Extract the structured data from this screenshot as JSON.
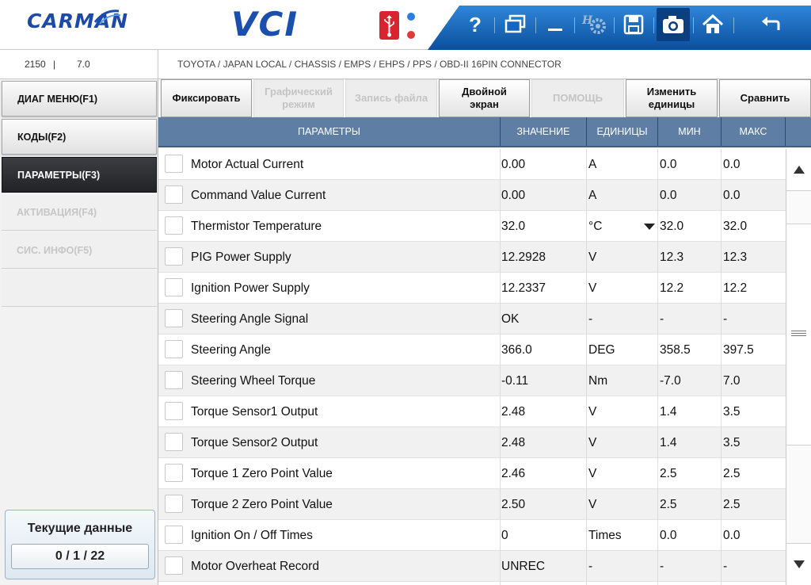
{
  "header": {
    "logo_text": "CARMAN",
    "app_title": "VCI",
    "toolbar_icons": [
      "help-icon",
      "window-icon",
      "minimize-icon",
      "settings-icon",
      "save-icon",
      "camera-icon",
      "home-icon",
      "back-icon"
    ],
    "help_label": "?",
    "accent_color": "#1a4fae",
    "toolbar_color": "#1566c0"
  },
  "info": {
    "vin": "2150",
    "separator": "|",
    "version": "7.0",
    "breadcrumb": "TOYOTA / JAPAN LOCAL / CHASSIS / EMPS / EHPS / PPS / OBD-II 16PIN CONNECTOR"
  },
  "nav": {
    "items": [
      {
        "label": "ДИАГ МЕНЮ(F1)",
        "state": "enabled"
      },
      {
        "label": "КОДЫ(F2)",
        "state": "enabled"
      },
      {
        "label": "ПАРАМЕТРЫ(F3)",
        "state": "active"
      },
      {
        "label": "АКТИВАЦИЯ(F4)",
        "state": "disabled"
      },
      {
        "label": "СИС. ИНФО(F5)",
        "state": "disabled"
      }
    ]
  },
  "counter": {
    "title": "Текущие данные",
    "value": "0 / 1 / 22"
  },
  "func_buttons": [
    {
      "label": "Фиксировать",
      "enabled": true
    },
    {
      "label": "Графический режим",
      "enabled": false
    },
    {
      "label": "Запись файла",
      "enabled": false
    },
    {
      "label": "Двойной экран",
      "enabled": true
    },
    {
      "label": "ПОМОЩЬ",
      "enabled": false
    },
    {
      "label": "Изменить единицы",
      "enabled": true
    },
    {
      "label": "Сравнить",
      "enabled": true
    }
  ],
  "table": {
    "columns": {
      "param": "ПАРАМЕТРЫ",
      "value": "ЗНАЧЕНИЕ",
      "units": "ЕДИНИЦЫ",
      "min": "МИН",
      "max": "МАКС"
    },
    "rows": [
      {
        "name": "Motor Actual Current",
        "value": "0.00",
        "unit": "A",
        "min": "0.0",
        "max": "0.0"
      },
      {
        "name": "Command Value Current",
        "value": "0.00",
        "unit": "A",
        "min": "0.0",
        "max": "0.0"
      },
      {
        "name": "Thermistor Temperature",
        "value": "32.0",
        "unit": "°C",
        "min": "32.0",
        "max": "32.0",
        "unit_dropdown": true
      },
      {
        "name": "PIG Power Supply",
        "value": "12.2928",
        "unit": "V",
        "min": "12.3",
        "max": "12.3"
      },
      {
        "name": "Ignition Power Supply",
        "value": "12.2337",
        "unit": "V",
        "min": "12.2",
        "max": "12.2"
      },
      {
        "name": "Steering Angle Signal",
        "value": "OK",
        "unit": "-",
        "min": "-",
        "max": "-"
      },
      {
        "name": "Steering Angle",
        "value": "366.0",
        "unit": "DEG",
        "min": "358.5",
        "max": "397.5"
      },
      {
        "name": "Steering Wheel Torque",
        "value": "-0.11",
        "unit": "Nm",
        "min": "-7.0",
        "max": "7.0"
      },
      {
        "name": "Torque Sensor1 Output",
        "value": "2.48",
        "unit": "V",
        "min": "1.4",
        "max": "3.5"
      },
      {
        "name": "Torque Sensor2 Output",
        "value": "2.48",
        "unit": "V",
        "min": "1.4",
        "max": "3.5"
      },
      {
        "name": "Torque 1 Zero Point Value",
        "value": "2.46",
        "unit": "V",
        "min": "2.5",
        "max": "2.5"
      },
      {
        "name": "Torque 2 Zero Point Value",
        "value": "2.50",
        "unit": "V",
        "min": "2.5",
        "max": "2.5"
      },
      {
        "name": "Ignition On / Off Times",
        "value": "0",
        "unit": "Times",
        "min": "0.0",
        "max": "0.0"
      },
      {
        "name": "Motor Overheat Record",
        "value": "UNREC",
        "unit": "-",
        "min": "-",
        "max": "-"
      }
    ]
  }
}
